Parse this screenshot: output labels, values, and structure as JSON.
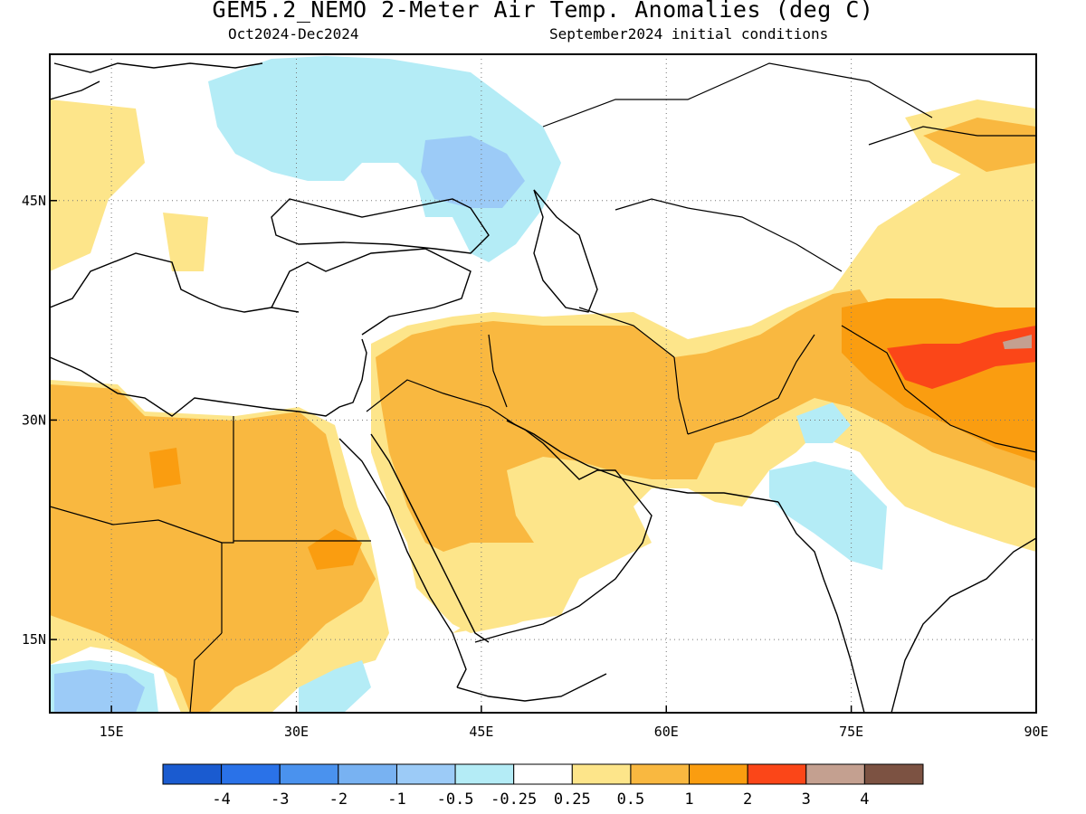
{
  "header": {
    "title": "GEM5.2_NEMO 2-Meter Air Temp. Anomalies (deg C)",
    "period": "Oct2024-Dec2024",
    "init": "September2024 initial conditions"
  },
  "map": {
    "lon_range": [
      10,
      90
    ],
    "lat_range": [
      10,
      55
    ],
    "lon_ticks": [
      {
        "value": 15,
        "label": "15E"
      },
      {
        "value": 30,
        "label": "30E"
      },
      {
        "value": 45,
        "label": "45E"
      },
      {
        "value": 60,
        "label": "60E"
      },
      {
        "value": 75,
        "label": "75E"
      },
      {
        "value": 90,
        "label": "90E"
      }
    ],
    "lat_ticks": [
      {
        "value": 45,
        "label": "45N"
      },
      {
        "value": 30,
        "label": "30N"
      },
      {
        "value": 15,
        "label": "15N"
      }
    ],
    "grid": "dotted"
  },
  "colorbar": {
    "colors": [
      "#1a5bd0",
      "#2a72e8",
      "#4a92ee",
      "#78b2f2",
      "#9ccbf7",
      "#b4ecf6",
      "#ffffff",
      "#fde58a",
      "#f9b840",
      "#fa9d10",
      "#fb4618",
      "#c4a090",
      "#7c5242"
    ],
    "labels": [
      "-4",
      "-3",
      "-2",
      "-1",
      "-0.5",
      "-0.25",
      "0.25",
      "0.5",
      "1",
      "2",
      "3",
      "4"
    ]
  }
}
